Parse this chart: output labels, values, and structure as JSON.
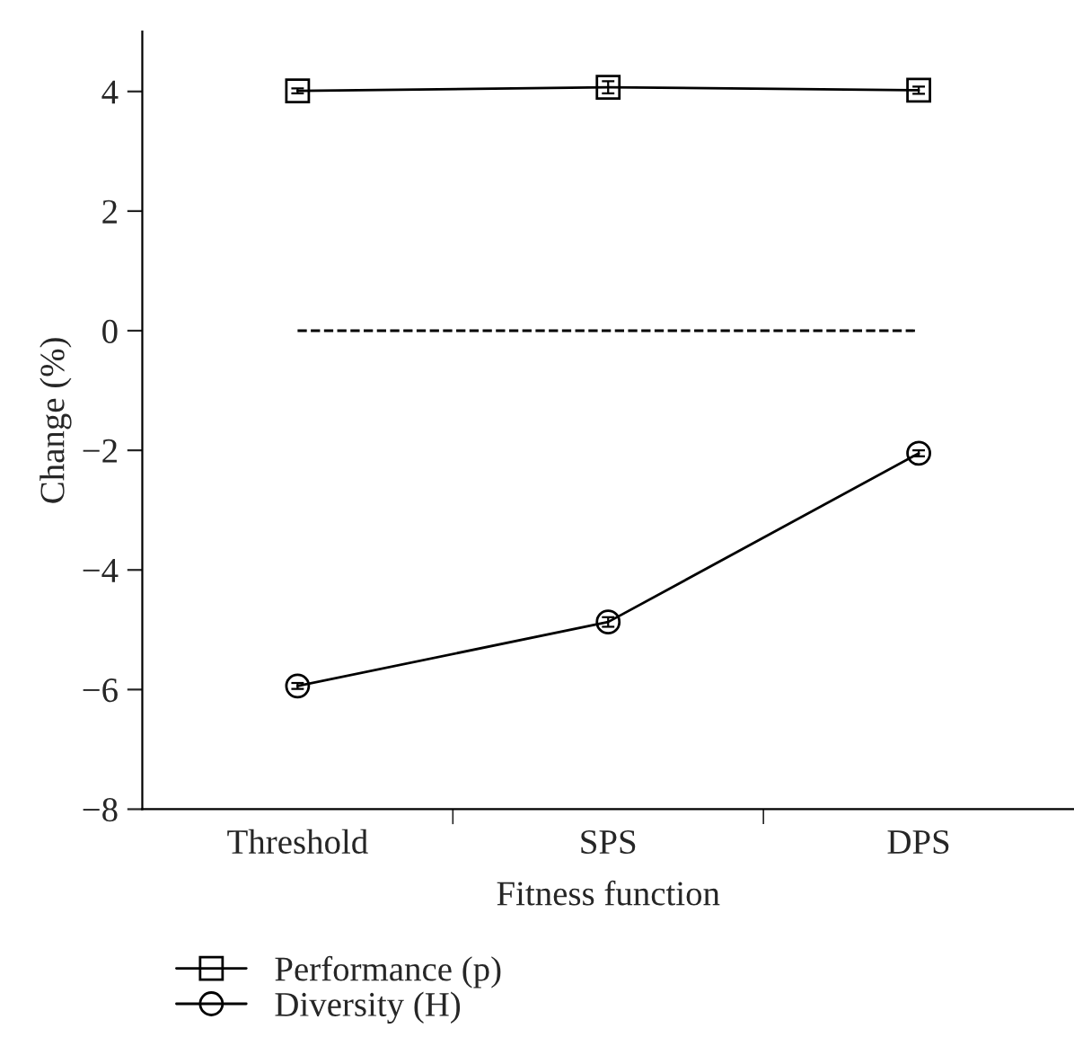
{
  "chart_data": {
    "type": "line",
    "xlabel": "Fitness function",
    "ylabel": "Change (%)",
    "categories": [
      "Threshold",
      "SPS",
      "DPS"
    ],
    "series": [
      {
        "name": "Performance (p)",
        "color": "#000000",
        "marker": "square",
        "values": [
          4.01,
          4.07,
          4.02
        ],
        "errors": [
          0.04,
          0.1,
          0.06
        ]
      },
      {
        "name": "Diversity (H)",
        "color": "#000000",
        "marker": "circle",
        "values": [
          -5.94,
          -4.87,
          -2.05
        ],
        "errors": [
          0.05,
          0.08,
          0.05
        ]
      }
    ],
    "ylim": [
      -8,
      5
    ],
    "yticks": [
      {
        "value": 4,
        "label": "4"
      },
      {
        "value": 2,
        "label": "2"
      },
      {
        "value": 0,
        "label": "0"
      },
      {
        "value": -2,
        "label": "−2"
      },
      {
        "value": -4,
        "label": "−4"
      },
      {
        "value": -6,
        "label": "−6"
      },
      {
        "value": -8,
        "label": "−8"
      }
    ],
    "ref_lines": [
      {
        "axis": "y",
        "value": 0,
        "line_style": "dashed",
        "color": "#000000"
      }
    ],
    "grid": false,
    "legend": "bottom left",
    "line_style": "solid"
  }
}
